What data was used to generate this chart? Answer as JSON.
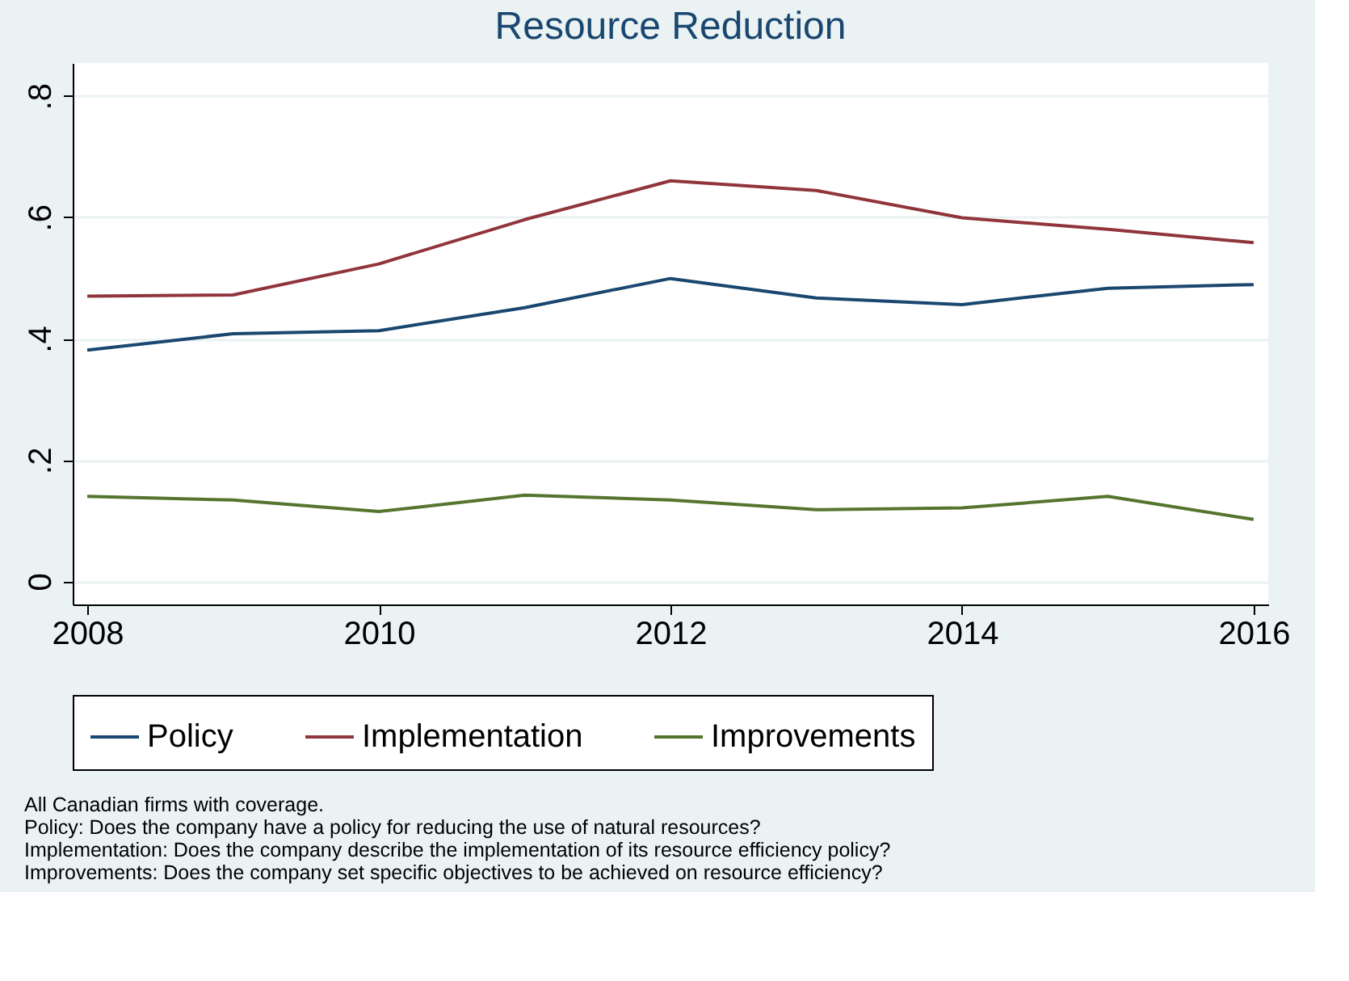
{
  "chart_data": {
    "type": "line",
    "title": "Resource Reduction",
    "x": [
      2008,
      2009,
      2010,
      2011,
      2012,
      2013,
      2014,
      2015,
      2016
    ],
    "series": [
      {
        "name": "Policy",
        "color": "#1a476f",
        "values": [
          0.381,
          0.408,
          0.413,
          0.451,
          0.499,
          0.467,
          0.456,
          0.483,
          0.489
        ]
      },
      {
        "name": "Implementation",
        "color": "#90353b",
        "values": [
          0.47,
          0.472,
          0.523,
          0.596,
          0.66,
          0.644,
          0.599,
          0.58,
          0.558
        ]
      },
      {
        "name": "Improvements",
        "color": "#55752f",
        "values": [
          0.14,
          0.134,
          0.115,
          0.142,
          0.134,
          0.118,
          0.121,
          0.14,
          0.102
        ]
      }
    ],
    "xlim": [
      2007.9,
      2016.1
    ],
    "xticks": [
      2008,
      2010,
      2012,
      2014,
      2016
    ],
    "ylim": [
      -0.038,
      0.854
    ],
    "yticks": [
      0,
      {
        "value": 0.2,
        "label": ".2"
      },
      {
        "value": 0.4,
        "label": ".4"
      },
      {
        "value": 0.6,
        "label": ".6"
      },
      {
        "value": 0.8,
        "label": ".8"
      }
    ],
    "grid": "y",
    "legend": "bottom",
    "marker": "none",
    "line_style": "solid",
    "annotations": [
      "All Canadian firms with coverage.",
      "Policy: Does the company have a policy for reducing the use of natural resources?",
      "Implementation: Does the company describe the implementation of its resource efficiency policy?",
      "Improvements: Does the company set specific objectives to be achieved on resource efficiency?"
    ]
  }
}
